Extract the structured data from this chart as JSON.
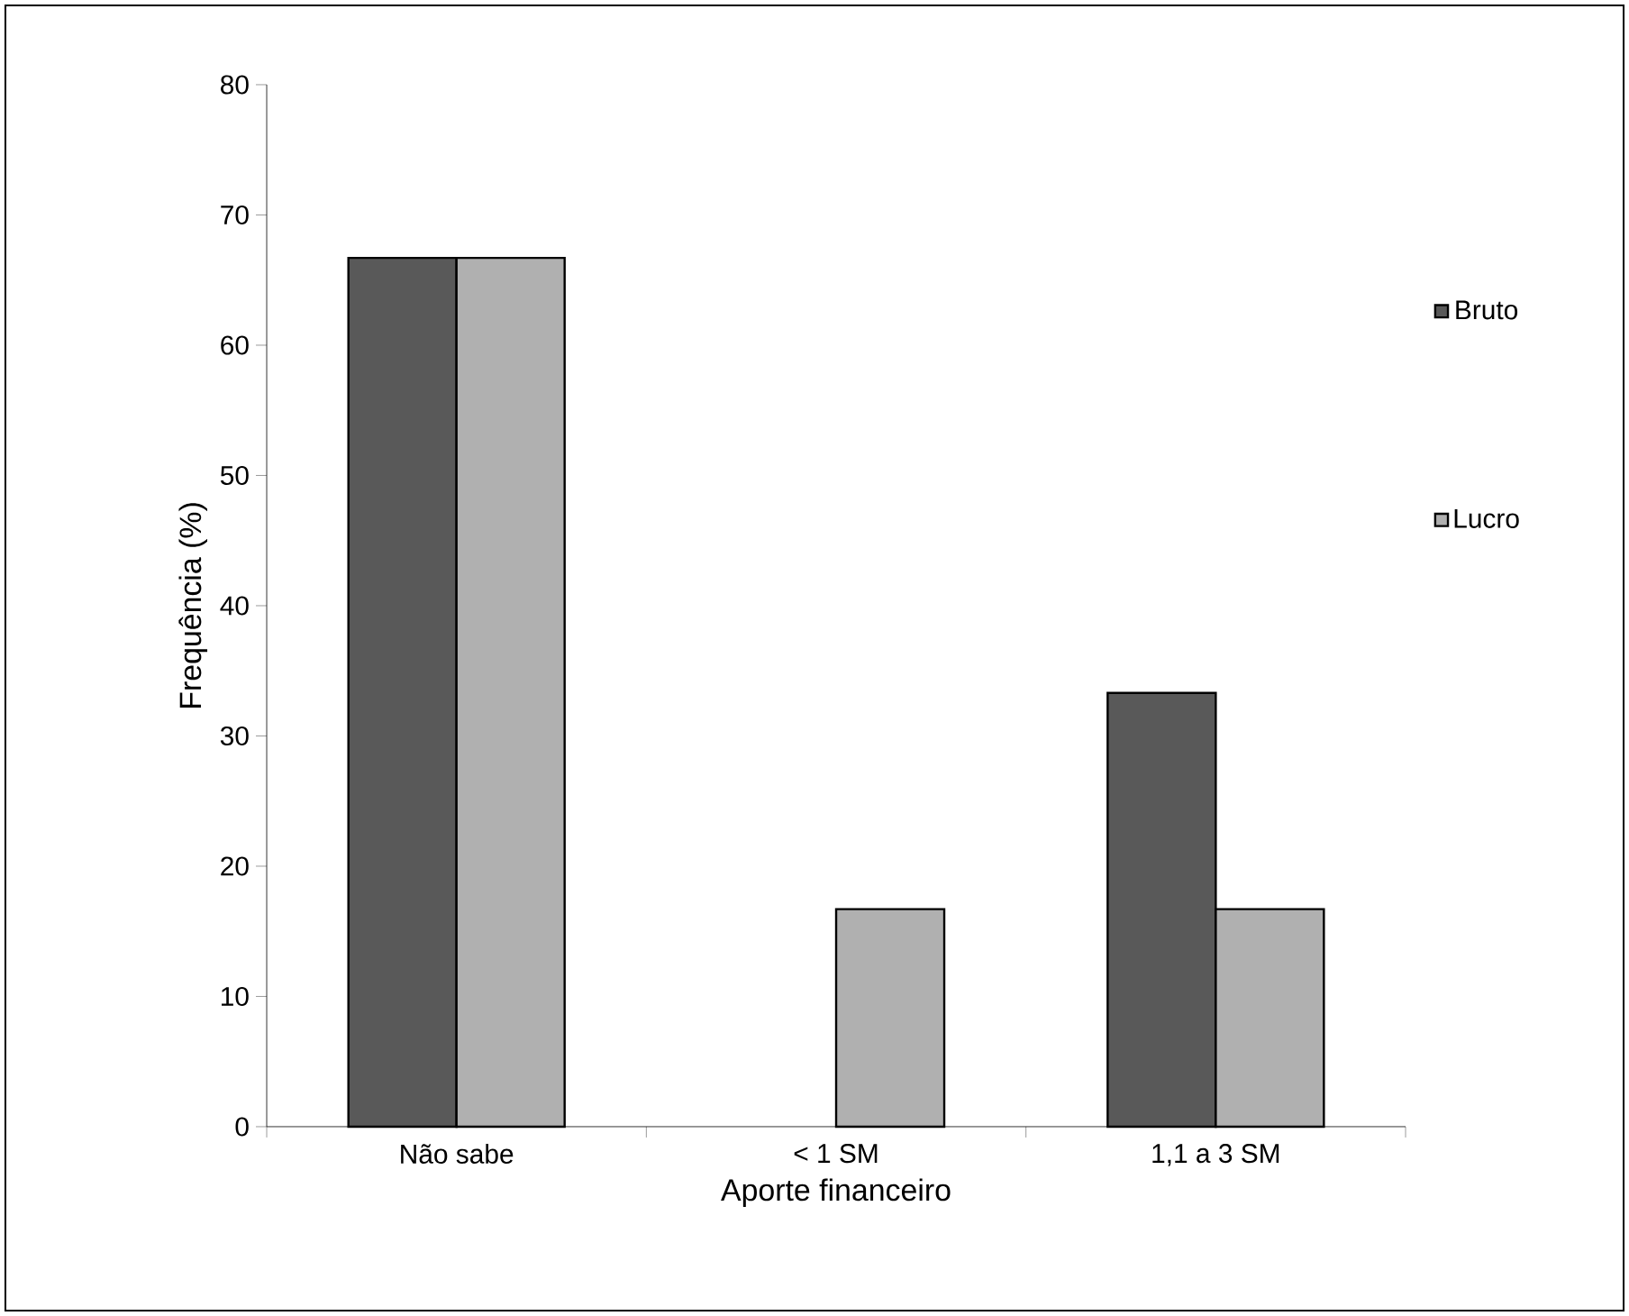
{
  "chart_data": {
    "type": "bar",
    "xlabel": "Aporte financeiro",
    "ylabel": "Frequência (%)",
    "categories": [
      "Não sabe",
      "< 1 SM",
      "1,1 a 3 SM"
    ],
    "series": [
      {
        "name": "Bruto",
        "color": "#595959",
        "values": [
          66.7,
          null,
          33.3
        ]
      },
      {
        "name": "Lucro",
        "color": "#b0b0b0",
        "values": [
          66.7,
          16.7,
          16.7
        ]
      }
    ],
    "ylim": [
      0,
      80
    ],
    "yticks": [
      0,
      10,
      20,
      30,
      40,
      50,
      60,
      70,
      80
    ],
    "grid": false,
    "legend": "right"
  }
}
